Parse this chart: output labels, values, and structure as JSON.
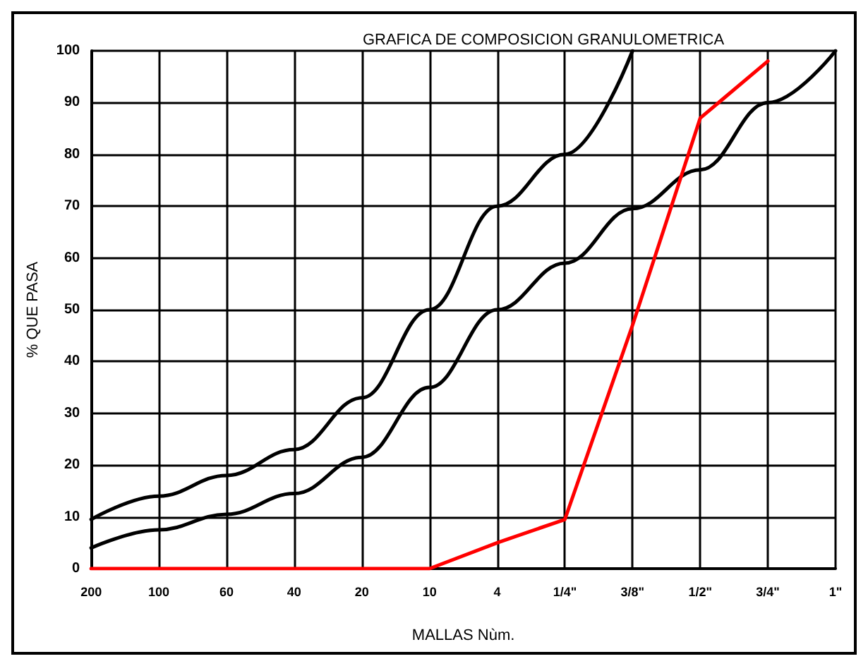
{
  "chart_data": {
    "type": "line",
    "title": "GRAFICA DE COMPOSICION GRANULOMETRICA",
    "xlabel": "MALLAS Nùm.",
    "ylabel": "% QUE PASA",
    "categories": [
      "200",
      "100",
      "60",
      "40",
      "20",
      "10",
      "4",
      "1/4\"",
      "3/8\"",
      "1/2\"",
      "3/4\"",
      "1\""
    ],
    "ylim": [
      0,
      100
    ],
    "yticks": [
      0,
      10,
      20,
      30,
      40,
      50,
      60,
      70,
      80,
      90,
      100
    ],
    "grid": true,
    "marker": "none",
    "line_style": "solid",
    "series": [
      {
        "color": "#000000",
        "values": [
          9.5,
          14,
          18,
          23,
          33,
          50,
          70,
          80,
          100,
          null,
          null,
          null
        ]
      },
      {
        "color": "#000000",
        "values": [
          4,
          7.5,
          10.5,
          14.5,
          21.5,
          35,
          50,
          59,
          69.5,
          77,
          90,
          100
        ]
      },
      {
        "color": "#ff0000",
        "values": [
          0,
          0,
          0,
          0,
          0,
          0,
          5,
          9.5,
          47,
          87,
          98,
          null
        ]
      }
    ]
  }
}
